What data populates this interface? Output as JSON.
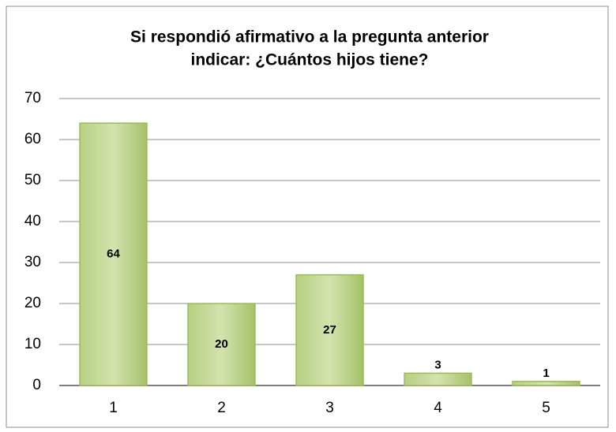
{
  "chart_data": {
    "type": "bar",
    "title": [
      "Si respondió afirmativo  a la pregunta anterior",
      "indicar: ¿Cuántos hijos tiene?"
    ],
    "categories": [
      "1",
      "2",
      "3",
      "4",
      "5"
    ],
    "values": [
      64,
      20,
      27,
      3,
      1
    ],
    "color": "#9bbb59",
    "ylim": [
      0,
      70
    ],
    "yticks": [
      0,
      10,
      20,
      30,
      40,
      50,
      60,
      70
    ],
    "grid": true
  }
}
